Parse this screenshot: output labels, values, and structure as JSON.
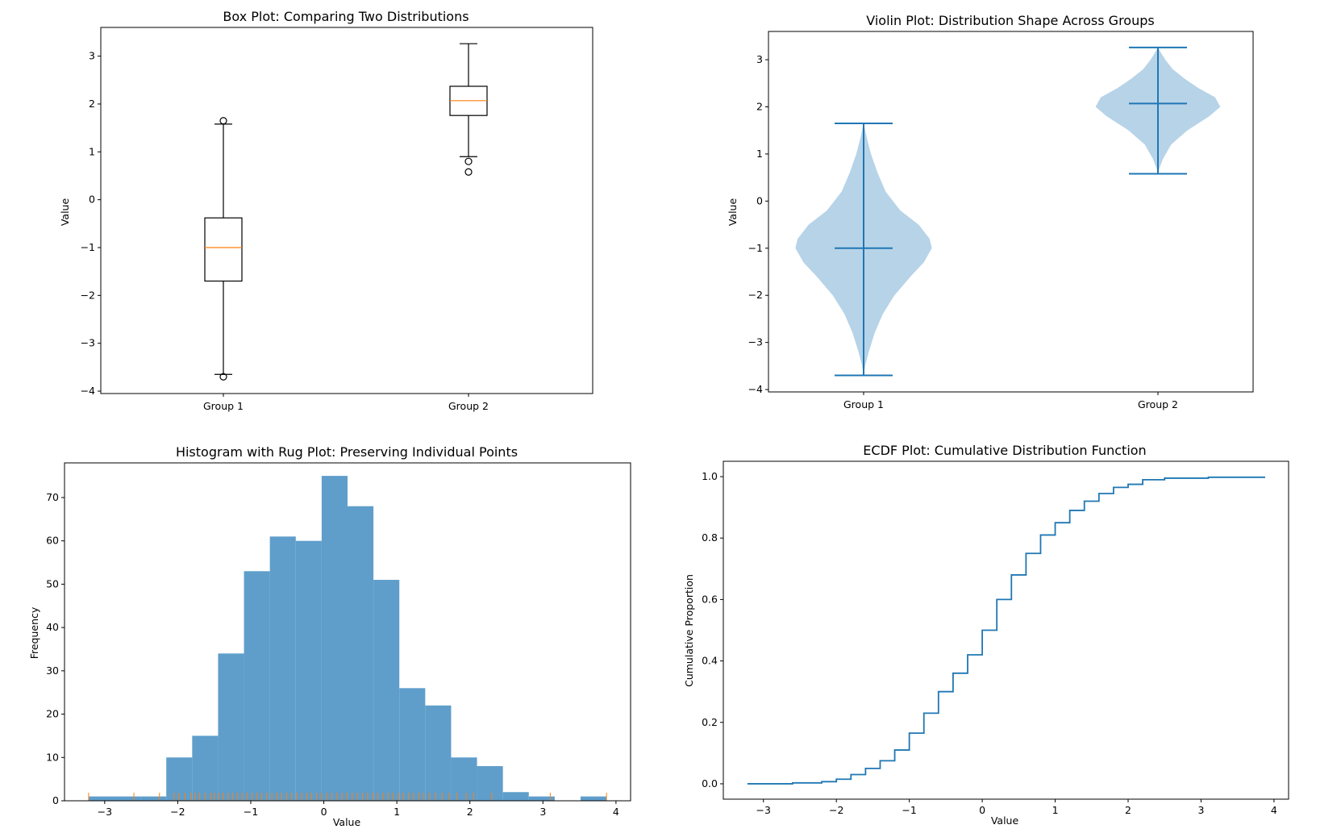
{
  "colors": {
    "blue": "#1f77b4",
    "hist_fill": "#5f9ecb",
    "violin_fill": "#b7d3e8",
    "orange": "#ff7f0e",
    "black": "#000000"
  },
  "chart_data": [
    {
      "type": "box",
      "title": "Box Plot: Comparing Two Distributions",
      "xlabel": "",
      "ylabel": "Value",
      "categories": [
        "Group 1",
        "Group 2"
      ],
      "ylim": [
        -4.05,
        3.6
      ],
      "yticks": [
        -4,
        -3,
        -2,
        -1,
        0,
        1,
        2,
        3
      ],
      "boxes": [
        {
          "whisker_low": -3.65,
          "q1": -1.7,
          "median": -1.0,
          "q3": -0.38,
          "whisker_high": 1.58,
          "fliers": [
            -3.7,
            1.65
          ]
        },
        {
          "whisker_low": 0.9,
          "q1": 1.76,
          "median": 2.07,
          "q3": 2.37,
          "whisker_high": 3.26,
          "fliers": [
            0.8,
            0.58
          ]
        }
      ]
    },
    {
      "type": "violin",
      "title": "Violin Plot: Distribution Shape Across Groups",
      "xlabel": "",
      "ylabel": "Value",
      "categories": [
        "Group 1",
        "Group 2"
      ],
      "ylim": [
        -4.05,
        3.6
      ],
      "yticks": [
        -4,
        -3,
        -2,
        -1,
        0,
        1,
        2,
        3
      ],
      "violins": [
        {
          "min": -3.7,
          "median": -1.0,
          "max": 1.65,
          "density": [
            [
              -3.7,
              0.0
            ],
            [
              -3.5,
              0.02
            ],
            [
              -3.2,
              0.07
            ],
            [
              -2.8,
              0.15
            ],
            [
              -2.4,
              0.26
            ],
            [
              -2.0,
              0.42
            ],
            [
              -1.6,
              0.64
            ],
            [
              -1.3,
              0.82
            ],
            [
              -1.0,
              0.93
            ],
            [
              -0.8,
              0.9
            ],
            [
              -0.5,
              0.75
            ],
            [
              -0.2,
              0.5
            ],
            [
              0.2,
              0.3
            ],
            [
              0.6,
              0.19
            ],
            [
              1.0,
              0.1
            ],
            [
              1.3,
              0.05
            ],
            [
              1.65,
              0.0
            ]
          ]
        },
        {
          "min": 0.58,
          "median": 2.07,
          "max": 3.26,
          "density": [
            [
              0.58,
              0.0
            ],
            [
              0.7,
              0.02
            ],
            [
              0.9,
              0.07
            ],
            [
              1.2,
              0.18
            ],
            [
              1.5,
              0.4
            ],
            [
              1.8,
              0.7
            ],
            [
              2.0,
              0.85
            ],
            [
              2.2,
              0.78
            ],
            [
              2.4,
              0.55
            ],
            [
              2.6,
              0.36
            ],
            [
              2.8,
              0.2
            ],
            [
              3.0,
              0.1
            ],
            [
              3.15,
              0.04
            ],
            [
              3.26,
              0.0
            ]
          ]
        }
      ]
    },
    {
      "type": "histogram",
      "title": "Histogram with Rug Plot: Preserving Individual Points",
      "xlabel": "Value",
      "ylabel": "Frequency",
      "xlim": [
        -3.55,
        4.2
      ],
      "ylim": [
        0,
        78
      ],
      "xticks": [
        -3,
        -2,
        -1,
        0,
        1,
        2,
        3,
        4
      ],
      "yticks": [
        0,
        10,
        20,
        30,
        40,
        50,
        60,
        70
      ],
      "bin_start": -3.22,
      "bin_width": 0.3545,
      "counts": [
        1,
        1,
        1,
        10,
        15,
        34,
        53,
        61,
        60,
        75,
        68,
        51,
        26,
        22,
        10,
        8,
        2,
        1,
        0,
        1
      ],
      "rug_values": [
        -3.22,
        -2.6,
        -2.25,
        -2.05,
        -1.98,
        -1.9,
        -1.82,
        -1.76,
        -1.7,
        -1.62,
        -1.55,
        -1.5,
        -1.44,
        -1.38,
        -1.31,
        -1.25,
        -1.18,
        -1.12,
        -1.05,
        -0.98,
        -0.91,
        -0.85,
        -0.78,
        -0.71,
        -0.64,
        -0.58,
        -0.51,
        -0.44,
        -0.37,
        -0.3,
        -0.23,
        -0.17,
        -0.1,
        -0.03,
        0.04,
        0.11,
        0.18,
        0.25,
        0.32,
        0.39,
        0.46,
        0.53,
        0.6,
        0.67,
        0.74,
        0.81,
        0.88,
        0.95,
        1.02,
        1.09,
        1.16,
        1.23,
        1.3,
        1.37,
        1.45,
        1.53,
        1.62,
        1.72,
        1.82,
        1.95,
        2.05,
        2.3,
        3.1,
        3.87
      ]
    },
    {
      "type": "line",
      "title": "ECDF Plot: Cumulative Distribution Function",
      "xlabel": "Value",
      "ylabel": "Cumulative Proportion",
      "xlim": [
        -3.55,
        4.2
      ],
      "ylim": [
        -0.05,
        1.05
      ],
      "xticks": [
        -3,
        -2,
        -1,
        0,
        1,
        2,
        3,
        4
      ],
      "yticks": [
        0.0,
        0.2,
        0.4,
        0.6,
        0.8,
        1.0
      ],
      "x": [
        -3.22,
        -2.6,
        -2.2,
        -2.0,
        -1.8,
        -1.6,
        -1.4,
        -1.2,
        -1.0,
        -0.8,
        -0.6,
        -0.4,
        -0.2,
        0.0,
        0.2,
        0.4,
        0.6,
        0.8,
        1.0,
        1.2,
        1.4,
        1.6,
        1.8,
        2.0,
        2.2,
        2.5,
        3.1,
        3.87
      ],
      "y": [
        0.0,
        0.003,
        0.007,
        0.015,
        0.03,
        0.05,
        0.075,
        0.11,
        0.165,
        0.23,
        0.3,
        0.36,
        0.42,
        0.5,
        0.6,
        0.68,
        0.75,
        0.81,
        0.85,
        0.89,
        0.92,
        0.945,
        0.965,
        0.975,
        0.99,
        0.995,
        0.998,
        1.0
      ]
    }
  ]
}
